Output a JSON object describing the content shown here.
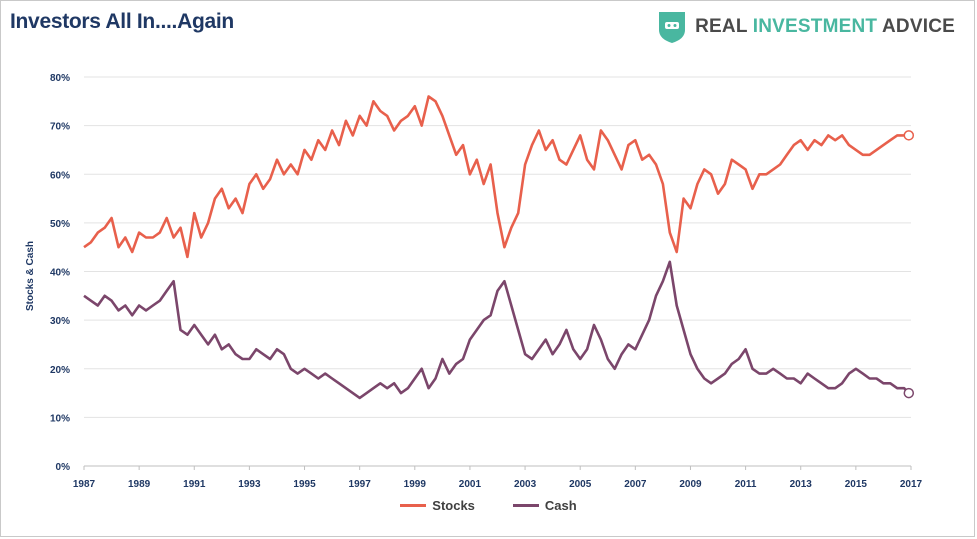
{
  "title": "Investors All In....Again",
  "brand": {
    "part1": "REAL ",
    "part2": "INVESTMENT",
    "part3": " ADVICE"
  },
  "colors": {
    "stocks": "#e8604c",
    "cash": "#7b466b",
    "title": "#1f3864",
    "brand_accent": "#49b7a0",
    "grid": "#e3e3e3"
  },
  "chart_data": {
    "type": "line",
    "title": "Investors All In....Again",
    "ylabel": "Stocks & Cash",
    "xlabel": "",
    "xlim": [
      1987,
      2017
    ],
    "ylim": [
      0,
      80
    ],
    "yticks": [
      0,
      10,
      20,
      30,
      40,
      50,
      60,
      70,
      80
    ],
    "ytick_labels": [
      "0%",
      "10%",
      "20%",
      "30%",
      "40%",
      "50%",
      "60%",
      "70%",
      "80%"
    ],
    "xticks": [
      1987,
      1989,
      1991,
      1993,
      1995,
      1997,
      1999,
      2001,
      2003,
      2005,
      2007,
      2009,
      2011,
      2013,
      2015,
      2017
    ],
    "grid": true,
    "legend": "bottom-center",
    "series": [
      {
        "name": "Stocks",
        "x": [
          1987.0,
          1987.25,
          1987.5,
          1987.75,
          1988.0,
          1988.25,
          1988.5,
          1988.75,
          1989.0,
          1989.25,
          1989.5,
          1989.75,
          1990.0,
          1990.25,
          1990.5,
          1990.75,
          1991.0,
          1991.25,
          1991.5,
          1991.75,
          1992.0,
          1992.25,
          1992.5,
          1992.75,
          1993.0,
          1993.25,
          1993.5,
          1993.75,
          1994.0,
          1994.25,
          1994.5,
          1994.75,
          1995.0,
          1995.25,
          1995.5,
          1995.75,
          1996.0,
          1996.25,
          1996.5,
          1996.75,
          1997.0,
          1997.25,
          1997.5,
          1997.75,
          1998.0,
          1998.25,
          1998.5,
          1998.75,
          1999.0,
          1999.25,
          1999.5,
          1999.75,
          2000.0,
          2000.25,
          2000.5,
          2000.75,
          2001.0,
          2001.25,
          2001.5,
          2001.75,
          2002.0,
          2002.25,
          2002.5,
          2002.75,
          2003.0,
          2003.25,
          2003.5,
          2003.75,
          2004.0,
          2004.25,
          2004.5,
          2004.75,
          2005.0,
          2005.25,
          2005.5,
          2005.75,
          2006.0,
          2006.25,
          2006.5,
          2006.75,
          2007.0,
          2007.25,
          2007.5,
          2007.75,
          2008.0,
          2008.25,
          2008.5,
          2008.75,
          2009.0,
          2009.25,
          2009.5,
          2009.75,
          2010.0,
          2010.25,
          2010.5,
          2010.75,
          2011.0,
          2011.25,
          2011.5,
          2011.75,
          2012.0,
          2012.25,
          2012.5,
          2012.75,
          2013.0,
          2013.25,
          2013.5,
          2013.75,
          2014.0,
          2014.25,
          2014.5,
          2014.75,
          2015.0,
          2015.25,
          2015.5,
          2015.75,
          2016.0,
          2016.25,
          2016.5,
          2016.75,
          2016.92
        ],
        "values": [
          45,
          46,
          48,
          49,
          51,
          45,
          47,
          44,
          48,
          47,
          47,
          48,
          51,
          47,
          49,
          43,
          52,
          47,
          50,
          55,
          57,
          53,
          55,
          52,
          58,
          60,
          57,
          59,
          63,
          60,
          62,
          60,
          65,
          63,
          67,
          65,
          69,
          66,
          71,
          68,
          72,
          70,
          75,
          73,
          72,
          69,
          71,
          72,
          74,
          70,
          76,
          75,
          72,
          68,
          64,
          66,
          60,
          63,
          58,
          62,
          52,
          45,
          49,
          52,
          62,
          66,
          69,
          65,
          67,
          63,
          62,
          65,
          68,
          63,
          61,
          69,
          67,
          64,
          61,
          66,
          67,
          63,
          64,
          62,
          58,
          48,
          44,
          55,
          53,
          58,
          61,
          60,
          56,
          58,
          63,
          62,
          61,
          57,
          60,
          60,
          61,
          62,
          64,
          66,
          67,
          65,
          67,
          66,
          68,
          67,
          68,
          66,
          65,
          64,
          64,
          65,
          66,
          67,
          68,
          68,
          68
        ]
      },
      {
        "name": "Cash",
        "x": [
          1987.0,
          1987.25,
          1987.5,
          1987.75,
          1988.0,
          1988.25,
          1988.5,
          1988.75,
          1989.0,
          1989.25,
          1989.5,
          1989.75,
          1990.0,
          1990.25,
          1990.5,
          1990.75,
          1991.0,
          1991.25,
          1991.5,
          1991.75,
          1992.0,
          1992.25,
          1992.5,
          1992.75,
          1993.0,
          1993.25,
          1993.5,
          1993.75,
          1994.0,
          1994.25,
          1994.5,
          1994.75,
          1995.0,
          1995.25,
          1995.5,
          1995.75,
          1996.0,
          1996.25,
          1996.5,
          1996.75,
          1997.0,
          1997.25,
          1997.5,
          1997.75,
          1998.0,
          1998.25,
          1998.5,
          1998.75,
          1999.0,
          1999.25,
          1999.5,
          1999.75,
          2000.0,
          2000.25,
          2000.5,
          2000.75,
          2001.0,
          2001.25,
          2001.5,
          2001.75,
          2002.0,
          2002.25,
          2002.5,
          2002.75,
          2003.0,
          2003.25,
          2003.5,
          2003.75,
          2004.0,
          2004.25,
          2004.5,
          2004.75,
          2005.0,
          2005.25,
          2005.5,
          2005.75,
          2006.0,
          2006.25,
          2006.5,
          2006.75,
          2007.0,
          2007.25,
          2007.5,
          2007.75,
          2008.0,
          2008.25,
          2008.5,
          2008.75,
          2009.0,
          2009.25,
          2009.5,
          2009.75,
          2010.0,
          2010.25,
          2010.5,
          2010.75,
          2011.0,
          2011.25,
          2011.5,
          2011.75,
          2012.0,
          2012.25,
          2012.5,
          2012.75,
          2013.0,
          2013.25,
          2013.5,
          2013.75,
          2014.0,
          2014.25,
          2014.5,
          2014.75,
          2015.0,
          2015.25,
          2015.5,
          2015.75,
          2016.0,
          2016.25,
          2016.5,
          2016.75,
          2016.92
        ],
        "values": [
          35,
          34,
          33,
          35,
          34,
          32,
          33,
          31,
          33,
          32,
          33,
          34,
          36,
          38,
          28,
          27,
          29,
          27,
          25,
          27,
          24,
          25,
          23,
          22,
          22,
          24,
          23,
          22,
          24,
          23,
          20,
          19,
          20,
          19,
          18,
          19,
          18,
          17,
          16,
          15,
          14,
          15,
          16,
          17,
          16,
          17,
          15,
          16,
          18,
          20,
          16,
          18,
          22,
          19,
          21,
          22,
          26,
          28,
          30,
          31,
          36,
          38,
          33,
          28,
          23,
          22,
          24,
          26,
          23,
          25,
          28,
          24,
          22,
          24,
          29,
          26,
          22,
          20,
          23,
          25,
          24,
          27,
          30,
          35,
          38,
          42,
          33,
          28,
          23,
          20,
          18,
          17,
          18,
          19,
          21,
          22,
          24,
          20,
          19,
          19,
          20,
          19,
          18,
          18,
          17,
          19,
          18,
          17,
          16,
          16,
          17,
          19,
          20,
          19,
          18,
          18,
          17,
          17,
          16,
          16,
          15
        ]
      }
    ]
  },
  "legend_labels": [
    "Stocks",
    "Cash"
  ]
}
